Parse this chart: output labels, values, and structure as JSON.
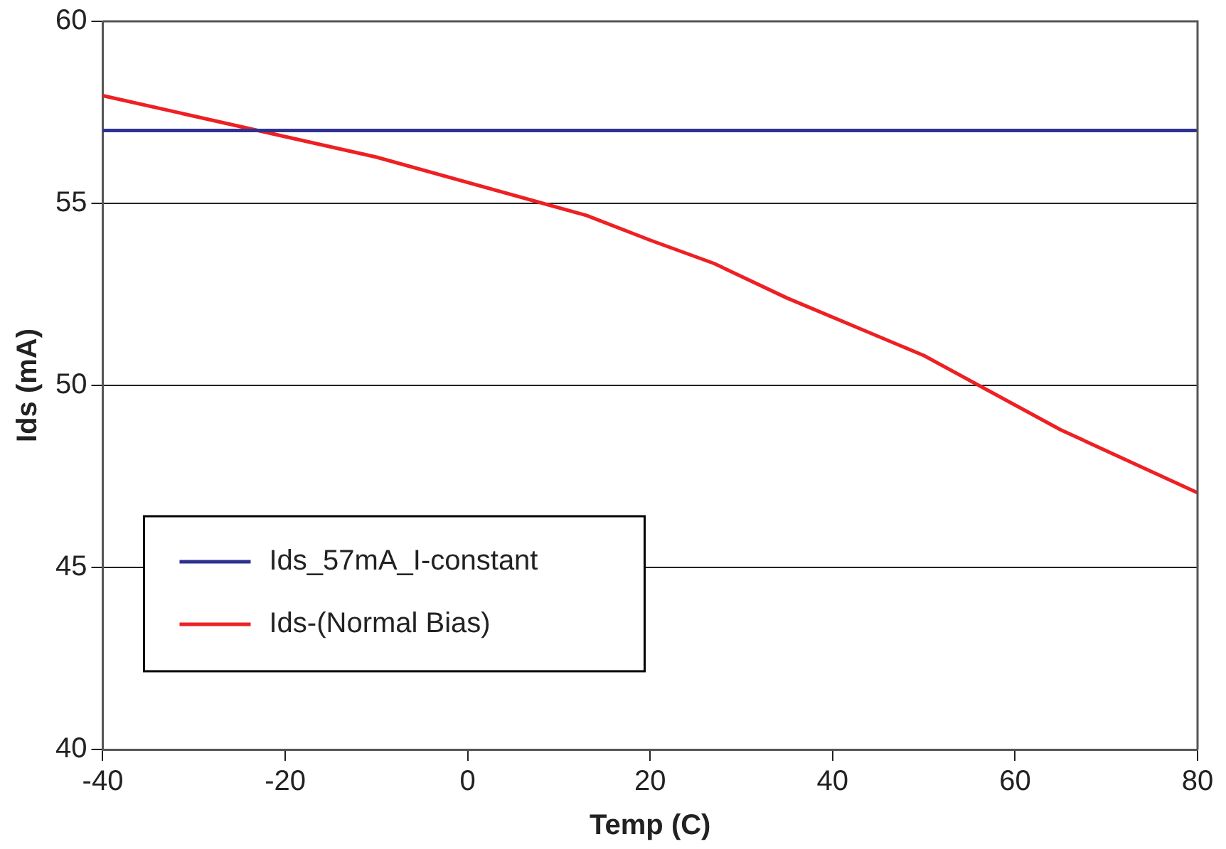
{
  "chart_data": {
    "type": "line",
    "xlabel": "Temp (C)",
    "ylabel": "Ids (mA)",
    "xlim": [
      -40,
      80
    ],
    "xticks": [
      -40,
      -20,
      0,
      20,
      40,
      60,
      80
    ],
    "ylim": [
      40,
      60
    ],
    "yticks": [
      40,
      45,
      50,
      55,
      60
    ],
    "grid": "y",
    "legend": "bottom left",
    "marker": "none",
    "line_style": "solid",
    "series": [
      {
        "name": "Ids_57mA_I-constant",
        "color": "#2e3192",
        "x": [
          -40,
          80
        ],
        "values": [
          57,
          57
        ]
      },
      {
        "name": "Ids-(Normal Bias)",
        "color": "#ed2024",
        "x": [
          -40,
          -10,
          13,
          20,
          27,
          35,
          50,
          65,
          80
        ],
        "values": [
          57.96,
          56.27,
          54.67,
          53.99,
          53.35,
          52.4,
          50.82,
          48.78,
          47.05
        ]
      }
    ]
  }
}
